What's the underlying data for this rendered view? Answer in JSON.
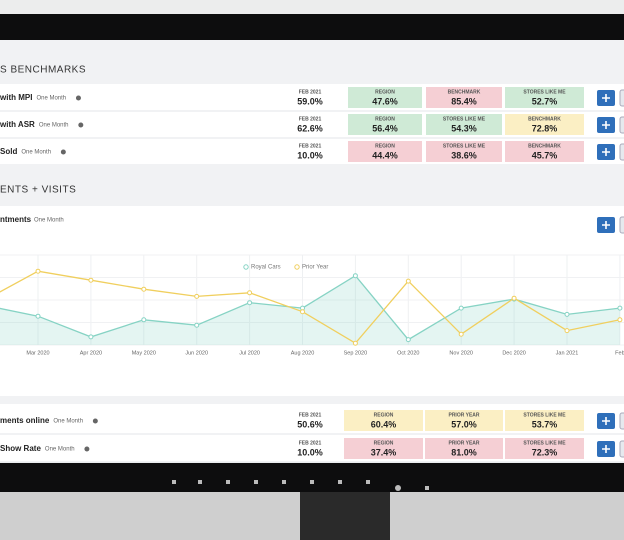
{
  "benchmarks": {
    "title": "S BENCHMARKS",
    "rows": [
      {
        "name": "with MPI",
        "period": "One Month",
        "date": "FEB 2021",
        "value": "59.0%",
        "metrics": [
          {
            "label": "REGION",
            "value": "47.6%",
            "color": "#cfead6"
          },
          {
            "label": "BENCHMARK",
            "value": "85.4%",
            "color": "#f5cfd4"
          },
          {
            "label": "STORES LIKE ME",
            "value": "52.7%",
            "color": "#cfead6"
          }
        ]
      },
      {
        "name": "with ASR",
        "period": "One Month",
        "date": "FEB 2021",
        "value": "62.6%",
        "metrics": [
          {
            "label": "REGION",
            "value": "56.4%",
            "color": "#cfead6"
          },
          {
            "label": "STORES LIKE ME",
            "value": "54.3%",
            "color": "#cfead6"
          },
          {
            "label": "BENCHMARK",
            "value": "72.8%",
            "color": "#fbefc4"
          }
        ]
      },
      {
        "name": "Sold",
        "period": "One Month",
        "date": "FEB 2021",
        "value": "10.0%",
        "metrics": [
          {
            "label": "REGION",
            "value": "44.4%",
            "color": "#f5cfd4"
          },
          {
            "label": "STORES LIKE ME",
            "value": "38.6%",
            "color": "#f5cfd4"
          },
          {
            "label": "BENCHMARK",
            "value": "45.7%",
            "color": "#f5cfd4"
          }
        ]
      }
    ]
  },
  "visits": {
    "title": "ENTS + VISITS",
    "subtitle": "ntments",
    "period": "One Month",
    "chart_data": {
      "type": "line",
      "ylim": [
        0,
        100
      ],
      "categories": [
        null,
        "Mar 2020",
        "Apr 2020",
        "May 2020",
        "Jun 2020",
        "Jul 2020",
        "Aug 2020",
        "Sep 2020",
        "Oct 2020",
        "Nov 2020",
        "Dec 2020",
        "Jan 2021",
        "Feb"
      ],
      "series": [
        {
          "name": "Royal Cars",
          "color": "#86d3c4",
          "values": [
            44,
            32,
            9,
            28,
            22,
            47,
            41,
            77,
            6,
            41,
            51,
            34,
            41
          ]
        },
        {
          "name": "Prior Year",
          "color": "#f0cf5e",
          "values": [
            50,
            82,
            72,
            62,
            54,
            58,
            37,
            2,
            71,
            12,
            52,
            16,
            28
          ]
        }
      ]
    }
  },
  "rows2": [
    {
      "name": "ments online",
      "period": "One Month",
      "date": "FEB 2021",
      "value": "50.6%",
      "metrics": [
        {
          "label": "REGION",
          "value": "60.4%",
          "color": "#fbefc4"
        },
        {
          "label": "PRIOR YEAR",
          "value": "57.0%",
          "color": "#fbefc4"
        },
        {
          "label": "STORES LIKE ME",
          "value": "53.7%",
          "color": "#fbefc4"
        }
      ]
    },
    {
      "name": "Show Rate",
      "period": "One Month",
      "date": "FEB 2021",
      "value": "10.0%",
      "metrics": [
        {
          "label": "REGION",
          "value": "37.4%",
          "color": "#f5cfd4"
        },
        {
          "label": "PRIOR YEAR",
          "value": "81.0%",
          "color": "#f5cfd4"
        },
        {
          "label": "STORES LIKE ME",
          "value": "72.3%",
          "color": "#f5cfd4"
        }
      ]
    }
  ]
}
